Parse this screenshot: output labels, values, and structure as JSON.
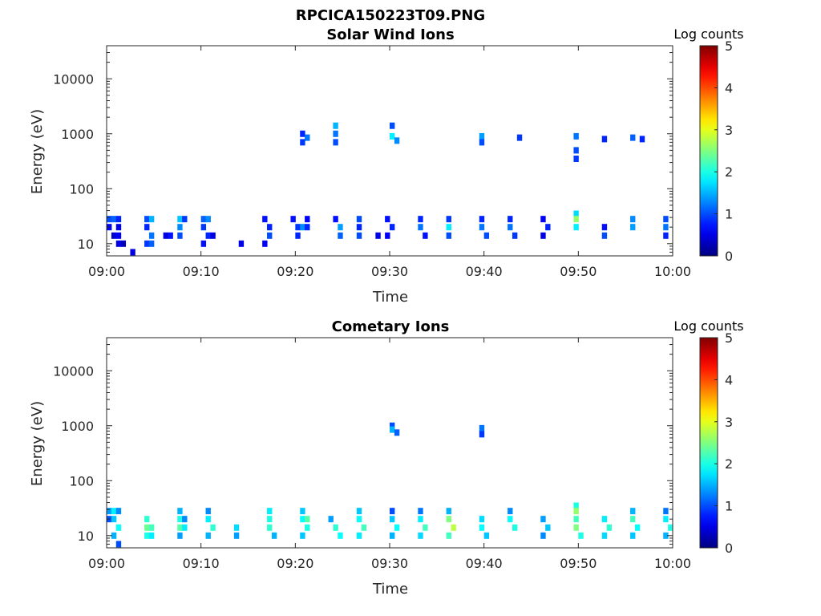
{
  "figure_title": "RPCICA150223T09.PNG",
  "chart_data": [
    {
      "type": "heatmap",
      "title": "Solar Wind Ions",
      "xlabel": "Time",
      "ylabel": "Energy (eV)",
      "x_ticks": [
        "09:00",
        "09:10",
        "09:20",
        "09:30",
        "09:40",
        "09:50",
        "10:00"
      ],
      "xlim_minutes": [
        0,
        60
      ],
      "y_scale": "log",
      "ylim": [
        6,
        40000
      ],
      "y_ticks": [
        10,
        100,
        1000,
        10000
      ],
      "y_tick_labels": [
        "10",
        "100",
        "1000",
        "10000"
      ],
      "colorbar": {
        "label": "Log counts",
        "range": [
          0,
          5
        ],
        "ticks": [
          "0",
          "1",
          "2",
          "3",
          "4",
          "5"
        ]
      },
      "colormap": "jet",
      "cells": [
        [
          0,
          28,
          1.0
        ],
        [
          0.5,
          28,
          1.1
        ],
        [
          1,
          28,
          0.8
        ],
        [
          0,
          20,
          0.6
        ],
        [
          1,
          20,
          0.5
        ],
        [
          0.5,
          14,
          0.4
        ],
        [
          1,
          14,
          0.6
        ],
        [
          1.5,
          10,
          0.3
        ],
        [
          1,
          10,
          0.5
        ],
        [
          2.5,
          7,
          0.5
        ],
        [
          4,
          28,
          1.0
        ],
        [
          4.5,
          28,
          1.5
        ],
        [
          4,
          20,
          0.8
        ],
        [
          4.5,
          14,
          1.2
        ],
        [
          4,
          10,
          0.9
        ],
        [
          4.5,
          10,
          1.1
        ],
        [
          6,
          14,
          0.5
        ],
        [
          6.5,
          14,
          0.7
        ],
        [
          7.5,
          28,
          1.6
        ],
        [
          7.5,
          20,
          1.3
        ],
        [
          8,
          28,
          0.9
        ],
        [
          7.5,
          14,
          1.0
        ],
        [
          10,
          28,
          1.1
        ],
        [
          10.5,
          28,
          1.3
        ],
        [
          10,
          20,
          0.9
        ],
        [
          10.5,
          14,
          0.8
        ],
        [
          10,
          10,
          0.7
        ],
        [
          11,
          14,
          0.5
        ],
        [
          14,
          10,
          0.5
        ],
        [
          16.5,
          28,
          0.7
        ],
        [
          17,
          20,
          0.8
        ],
        [
          17,
          14,
          1.0
        ],
        [
          16.5,
          10,
          0.6
        ],
        [
          19.5,
          28,
          0.7
        ],
        [
          20,
          20,
          0.9
        ],
        [
          20.5,
          20,
          1.3
        ],
        [
          20,
          14,
          0.8
        ],
        [
          21,
          28,
          0.6
        ],
        [
          21,
          20,
          0.8
        ],
        [
          24,
          28,
          0.7
        ],
        [
          24.5,
          20,
          1.4
        ],
        [
          24.5,
          14,
          1.1
        ],
        [
          26.5,
          28,
          1.0
        ],
        [
          26.5,
          20,
          0.8
        ],
        [
          26.5,
          14,
          1.0
        ],
        [
          28.5,
          14,
          0.5
        ],
        [
          29.5,
          28,
          0.7
        ],
        [
          30,
          20,
          0.8
        ],
        [
          29.5,
          14,
          0.6
        ],
        [
          33,
          28,
          0.8
        ],
        [
          33,
          20,
          1.2
        ],
        [
          33.5,
          14,
          0.7
        ],
        [
          36,
          28,
          0.9
        ],
        [
          36,
          20,
          1.8
        ],
        [
          36,
          14,
          1.0
        ],
        [
          39.5,
          28,
          0.8
        ],
        [
          39.5,
          20,
          1.2
        ],
        [
          40,
          14,
          1.0
        ],
        [
          42.5,
          28,
          0.8
        ],
        [
          42.5,
          20,
          1.2
        ],
        [
          43,
          14,
          0.9
        ],
        [
          46,
          28,
          0.6
        ],
        [
          46.5,
          20,
          0.8
        ],
        [
          46,
          14,
          0.5
        ],
        [
          49.5,
          35,
          1.7
        ],
        [
          49.5,
          28,
          2.6
        ],
        [
          49.5,
          20,
          1.8
        ],
        [
          52.5,
          20,
          0.7
        ],
        [
          52.5,
          14,
          1.0
        ],
        [
          55.5,
          28,
          1.3
        ],
        [
          55.5,
          20,
          1.4
        ],
        [
          59,
          28,
          1.0
        ],
        [
          59,
          20,
          1.2
        ],
        [
          59,
          14,
          0.8
        ],
        [
          20.5,
          1000,
          0.8
        ],
        [
          21,
          850,
          1.2
        ],
        [
          20.5,
          700,
          0.9
        ],
        [
          24,
          1400,
          1.5
        ],
        [
          24,
          1000,
          1.2
        ],
        [
          24,
          700,
          1.0
        ],
        [
          30,
          1400,
          1.0
        ],
        [
          30,
          900,
          1.8
        ],
        [
          30.5,
          750,
          1.3
        ],
        [
          39.5,
          900,
          1.4
        ],
        [
          39.5,
          700,
          1.0
        ],
        [
          43.5,
          850,
          0.9
        ],
        [
          49.5,
          900,
          1.2
        ],
        [
          49.5,
          500,
          1.0
        ],
        [
          49.5,
          350,
          0.9
        ],
        [
          52.5,
          800,
          0.8
        ],
        [
          55.5,
          850,
          1.1
        ],
        [
          56.5,
          800,
          0.8
        ]
      ]
    },
    {
      "type": "heatmap",
      "title": "Cometary Ions",
      "xlabel": "Time",
      "ylabel": "Energy (eV)",
      "x_ticks": [
        "09:00",
        "09:10",
        "09:20",
        "09:30",
        "09:40",
        "09:50",
        "10:00"
      ],
      "xlim_minutes": [
        0,
        60
      ],
      "y_scale": "log",
      "ylim": [
        6,
        40000
      ],
      "y_ticks": [
        10,
        100,
        1000,
        10000
      ],
      "y_tick_labels": [
        "10",
        "100",
        "1000",
        "10000"
      ],
      "colorbar": {
        "label": "Log counts",
        "range": [
          0,
          5
        ],
        "ticks": [
          "0",
          "1",
          "2",
          "3",
          "4",
          "5"
        ]
      },
      "colormap": "jet",
      "cells": [
        [
          0,
          28,
          1.4
        ],
        [
          0.5,
          28,
          1.8
        ],
        [
          1,
          28,
          1.3
        ],
        [
          0,
          20,
          1.0
        ],
        [
          0.5,
          20,
          1.6
        ],
        [
          1,
          14,
          1.9
        ],
        [
          0.5,
          10,
          1.5
        ],
        [
          1,
          7,
          1.0
        ],
        [
          4,
          20,
          2.1
        ],
        [
          4,
          14,
          2.4
        ],
        [
          4.5,
          14,
          2.2
        ],
        [
          4,
          10,
          2.0
        ],
        [
          4.5,
          10,
          1.8
        ],
        [
          7.5,
          28,
          1.5
        ],
        [
          7.5,
          20,
          2.0
        ],
        [
          7.5,
          14,
          2.3
        ],
        [
          8,
          20,
          1.3
        ],
        [
          8,
          14,
          1.8
        ],
        [
          7.5,
          10,
          1.4
        ],
        [
          10.5,
          28,
          1.3
        ],
        [
          10.5,
          20,
          1.8
        ],
        [
          11,
          14,
          2.1
        ],
        [
          10.5,
          10,
          1.5
        ],
        [
          13.5,
          14,
          1.7
        ],
        [
          13.5,
          10,
          1.4
        ],
        [
          17,
          28,
          1.8
        ],
        [
          17,
          20,
          2.0
        ],
        [
          17,
          14,
          2.1
        ],
        [
          17.5,
          10,
          1.5
        ],
        [
          20.5,
          28,
          1.6
        ],
        [
          20.5,
          20,
          1.9
        ],
        [
          21,
          20,
          2.3
        ],
        [
          21,
          14,
          2.0
        ],
        [
          20.5,
          10,
          1.6
        ],
        [
          23.5,
          20,
          1.4
        ],
        [
          24,
          14,
          2.1
        ],
        [
          24.5,
          10,
          1.9
        ],
        [
          26.5,
          28,
          1.6
        ],
        [
          26.5,
          20,
          1.9
        ],
        [
          27,
          14,
          2.2
        ],
        [
          26.5,
          10,
          1.8
        ],
        [
          30,
          28,
          1.0
        ],
        [
          30,
          20,
          1.6
        ],
        [
          30.5,
          14,
          1.9
        ],
        [
          30,
          10,
          1.5
        ],
        [
          33,
          28,
          1.2
        ],
        [
          33,
          20,
          1.8
        ],
        [
          33.5,
          14,
          2.2
        ],
        [
          33,
          10,
          1.7
        ],
        [
          36,
          28,
          1.5
        ],
        [
          36,
          20,
          2.5
        ],
        [
          36.5,
          14,
          2.8
        ],
        [
          36,
          10,
          2.2
        ],
        [
          39.5,
          20,
          1.7
        ],
        [
          39.5,
          14,
          1.9
        ],
        [
          40,
          10,
          1.6
        ],
        [
          42.5,
          28,
          1.3
        ],
        [
          42.5,
          20,
          1.9
        ],
        [
          43,
          14,
          2.0
        ],
        [
          46,
          20,
          1.4
        ],
        [
          46.5,
          14,
          1.6
        ],
        [
          46,
          10,
          1.3
        ],
        [
          49.5,
          35,
          2.0
        ],
        [
          49.5,
          28,
          2.6
        ],
        [
          49.5,
          20,
          2.2
        ],
        [
          49.5,
          14,
          2.5
        ],
        [
          50,
          10,
          2.0
        ],
        [
          52.5,
          20,
          1.8
        ],
        [
          53,
          14,
          2.1
        ],
        [
          52.5,
          10,
          1.7
        ],
        [
          55.5,
          28,
          1.5
        ],
        [
          55.5,
          20,
          2.2
        ],
        [
          56,
          14,
          1.9
        ],
        [
          55.5,
          10,
          1.6
        ],
        [
          59,
          28,
          1.2
        ],
        [
          59,
          20,
          1.8
        ],
        [
          59.5,
          14,
          2.0
        ],
        [
          59,
          10,
          1.5
        ],
        [
          30,
          1000,
          1.0
        ],
        [
          30,
          850,
          1.5
        ],
        [
          30.5,
          750,
          1.1
        ],
        [
          39.5,
          900,
          1.2
        ],
        [
          39.5,
          700,
          0.9
        ]
      ]
    }
  ]
}
